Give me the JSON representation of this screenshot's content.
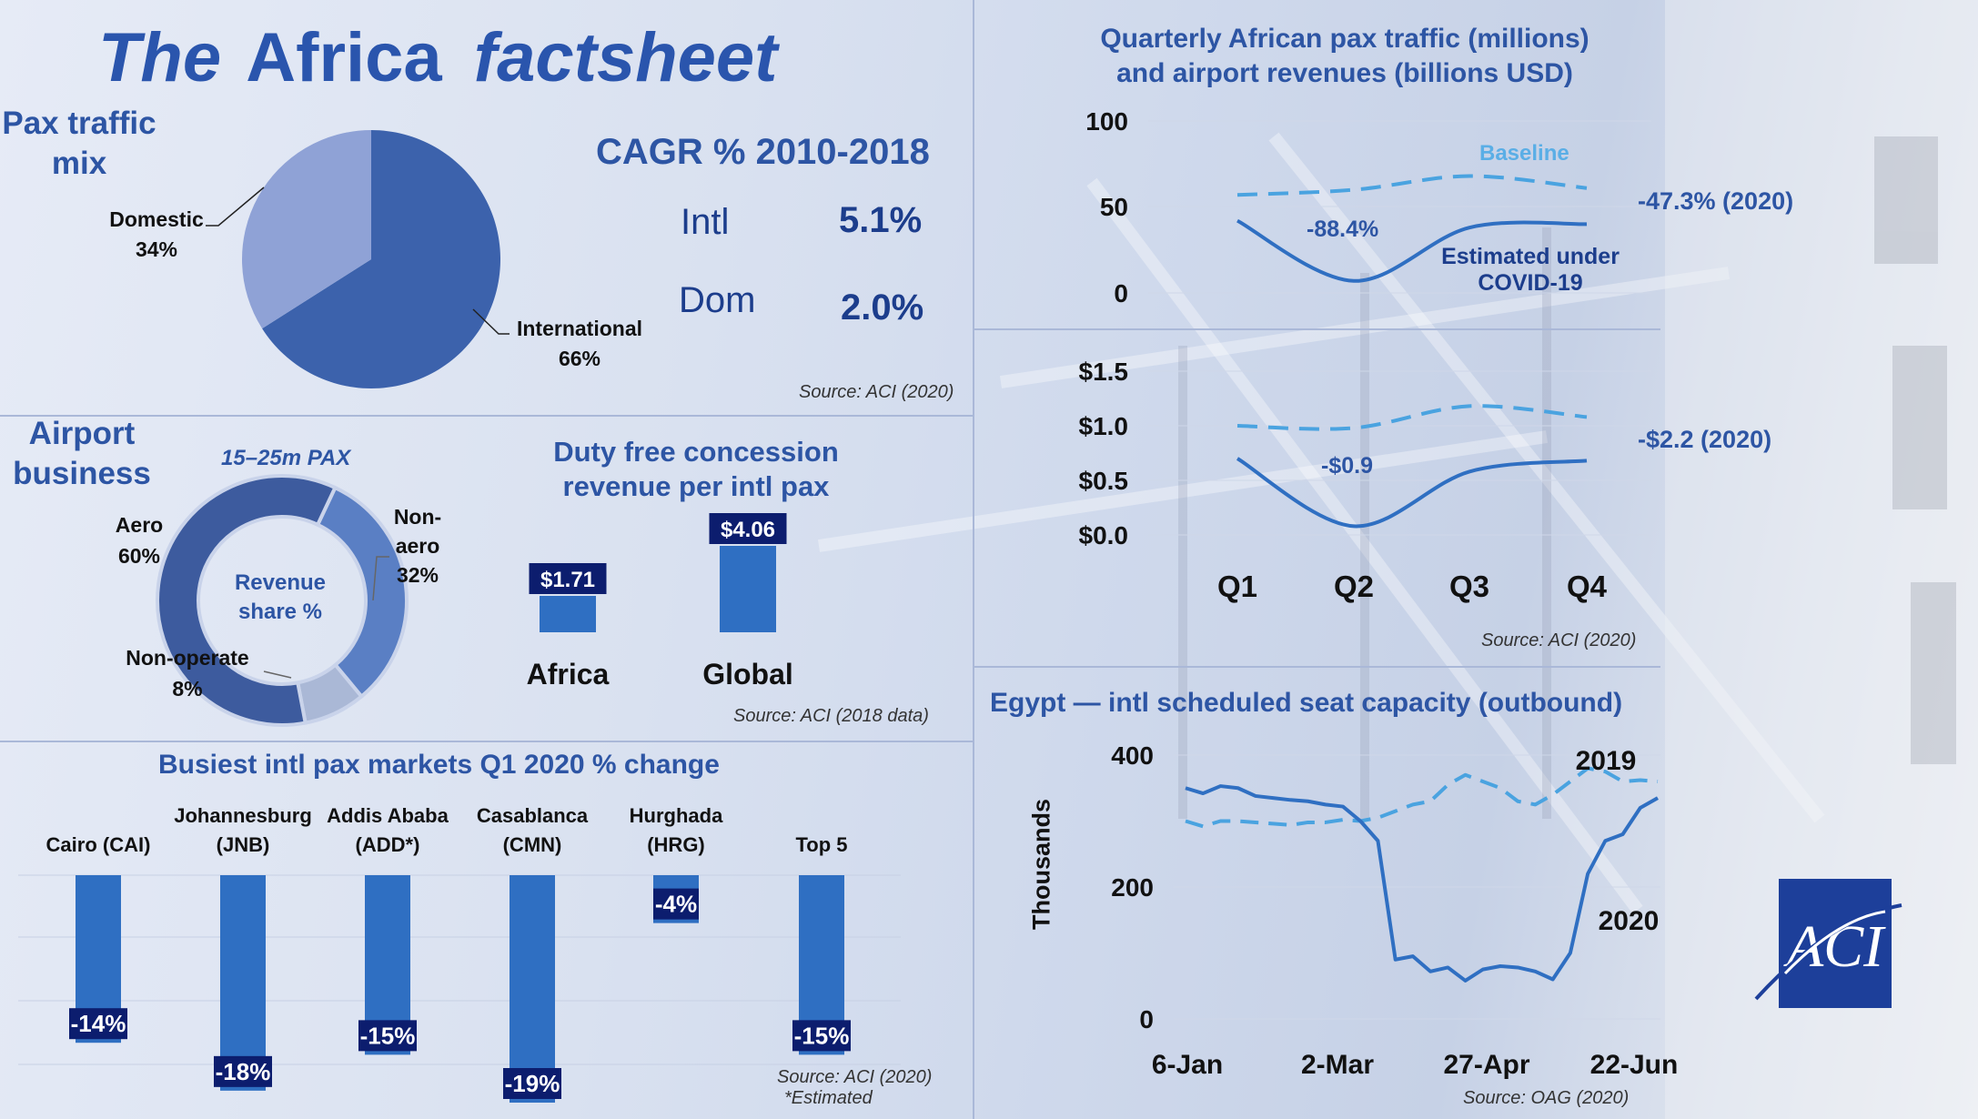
{
  "title": {
    "the": "The",
    "africa": "Africa",
    "factsheet": "factsheet"
  },
  "pax_mix": {
    "label_line1": "Pax traffic",
    "label_line2": "mix",
    "source": "Source: ACI (2020)",
    "chart_data": {
      "type": "pie",
      "slices": [
        {
          "name": "International",
          "pct_text": "66%",
          "value": 66,
          "color": "#3c62ac"
        },
        {
          "name": "Domestic",
          "pct_text": "34%",
          "value": 34,
          "color": "#8fa2d6"
        }
      ]
    }
  },
  "cagr": {
    "title": "CAGR % 2010-2018",
    "rows": [
      {
        "label": "Intl",
        "value": "5.1%"
      },
      {
        "label": "Dom",
        "value": "2.0%"
      }
    ],
    "chart_data": {
      "type": "table",
      "columns": [
        "segment",
        "cagr_pct"
      ],
      "rows": [
        [
          "Intl",
          5.1
        ],
        [
          "Dom",
          2.0
        ]
      ]
    }
  },
  "airport_business": {
    "label_line1": "Airport",
    "label_line2": "business",
    "subtitle": "15–25m PAX",
    "center_line1": "Revenue",
    "center_line2": "share %",
    "labels": {
      "aero_name": "Aero",
      "aero_pct": "60%",
      "nonaero_l1": "Non-",
      "nonaero_l2": "aero",
      "nonaero_pct": "32%",
      "nonop_name": "Non-operate",
      "nonop_pct": "8%"
    },
    "chart_data": {
      "type": "pie",
      "donut": true,
      "slices": [
        {
          "name": "Aero",
          "value": 60,
          "color": "#3d5b9e"
        },
        {
          "name": "Non-aero",
          "value": 32,
          "color": "#5a7fc4"
        },
        {
          "name": "Non-operate",
          "value": 8,
          "color": "#aab8d6"
        }
      ]
    }
  },
  "duty_free": {
    "title_line1": "Duty free concession",
    "title_line2": "revenue per intl pax",
    "source": "Source: ACI (2018 data)",
    "chart_data": {
      "type": "bar",
      "categories": [
        "Africa",
        "Global"
      ],
      "values": [
        1.71,
        4.06
      ],
      "labels": [
        "$1.71",
        "$4.06"
      ],
      "color": "#2f6fc2"
    }
  },
  "busiest": {
    "title": "Busiest intl pax markets Q1 2020 % change",
    "source": "Source: ACI (2020)",
    "note": "*Estimated",
    "chart_data": {
      "type": "bar",
      "categories": [
        [
          "Cairo (CAI)"
        ],
        [
          "Johannesburg",
          "(JNB)"
        ],
        [
          "Addis Ababa",
          "(ADD*)"
        ],
        [
          "Casablanca",
          "(CMN)"
        ],
        [
          "Hurghada",
          "(HRG)"
        ],
        [
          "Top 5"
        ]
      ],
      "values": [
        -14,
        -18,
        -15,
        -19,
        -4,
        -15
      ],
      "labels": [
        "-14%",
        "-18%",
        "-15%",
        "-19%",
        "-4%",
        "-15%"
      ],
      "color": "#2f6fc2"
    }
  },
  "quarterly": {
    "title_line1": "Quarterly African pax traffic (millions)",
    "title_line2": "and airport revenues (billions USD)",
    "source": "Source: ACI (2020)",
    "chart_data": [
      {
        "type": "line",
        "x": [
          "Q1",
          "Q2",
          "Q3",
          "Q4"
        ],
        "ylim": [
          0,
          100
        ],
        "yticks": [
          "100",
          "50",
          "0"
        ],
        "series": [
          {
            "name": "Baseline",
            "values": [
              57,
              60,
              68,
              61
            ],
            "style": "dashed",
            "color": "#4aa3e0"
          },
          {
            "name": "Estimated under COVID-19",
            "values": [
              42,
              7,
              38,
              40
            ],
            "style": "solid",
            "color": "#2f6fc2"
          }
        ],
        "annotations": {
          "baseline_l": "Baseline",
          "est_l1": "Estimated under",
          "est_l2": "COVID-19",
          "drop": "-88.4%",
          "annual": "-47.3% (2020)"
        }
      },
      {
        "type": "line",
        "x": [
          "Q1",
          "Q2",
          "Q3",
          "Q4"
        ],
        "ylim": [
          0,
          1.5
        ],
        "yticks": [
          "$1.5",
          "$1.0",
          "$0.5",
          "$0.0"
        ],
        "series": [
          {
            "values": [
              1.0,
              0.98,
              1.18,
              1.08
            ],
            "style": "dashed",
            "color": "#4aa3e0"
          },
          {
            "values": [
              0.7,
              0.08,
              0.58,
              0.68
            ],
            "style": "solid",
            "color": "#2f6fc2"
          }
        ],
        "annotations": {
          "drop": "-$0.9",
          "annual": "-$2.2 (2020)"
        }
      }
    ]
  },
  "egypt": {
    "title": "Egypt — intl scheduled seat capacity (outbound)",
    "ylabel": "Thousands",
    "source": "Source: OAG (2020)",
    "chart_data": {
      "type": "line",
      "ylim": [
        0,
        400
      ],
      "yticks": [
        "400",
        "200",
        "0"
      ],
      "xticks": [
        "6-Jan",
        "2-Mar",
        "27-Apr",
        "22-Jun"
      ],
      "series": [
        {
          "name": "2019",
          "style": "dashed",
          "color": "#4aa3e0",
          "values": [
            300,
            292,
            300,
            300,
            298,
            296,
            294,
            298,
            298,
            302,
            300,
            305,
            315,
            325,
            330,
            355,
            370,
            360,
            350,
            330,
            325,
            340,
            360,
            380,
            375,
            360,
            362,
            360
          ]
        },
        {
          "name": "2020",
          "style": "solid",
          "color": "#2f6fc2",
          "values": [
            350,
            342,
            353,
            350,
            338,
            335,
            332,
            330,
            325,
            322,
            300,
            270,
            90,
            95,
            72,
            78,
            58,
            75,
            80,
            78,
            72,
            60,
            100,
            220,
            270,
            280,
            320,
            335
          ]
        }
      ]
    }
  },
  "logo": {
    "text": "ACI",
    "description": "ACI logo"
  }
}
